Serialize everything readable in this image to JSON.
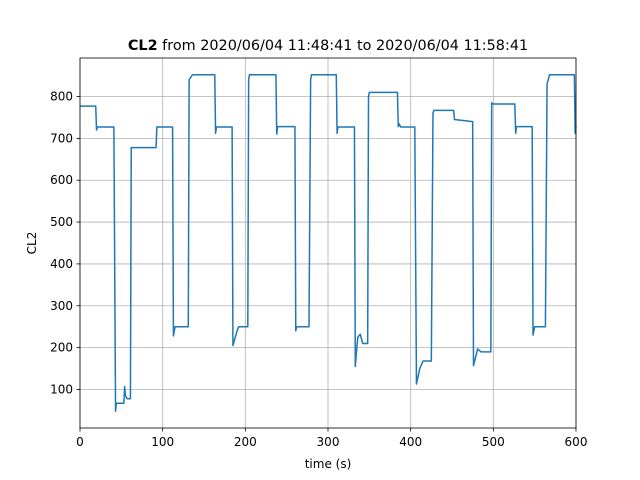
{
  "chart_data": {
    "type": "line",
    "title": [
      "CL2",
      "from 2020/06/04 11:48:41 to 2020/06/04 11:58:41"
    ],
    "x_label": "time (s)",
    "y_label": "CL2",
    "x": [
      0,
      19,
      20,
      21,
      41,
      43,
      44,
      53,
      54,
      55,
      57,
      61,
      62,
      63,
      92,
      93,
      112,
      113,
      115,
      131,
      132,
      136,
      163,
      164,
      165,
      184,
      185,
      190,
      192,
      203,
      204,
      205,
      237,
      238,
      239,
      260,
      261,
      262,
      277,
      279,
      280,
      310,
      311,
      312,
      332,
      333,
      336,
      339,
      342,
      348,
      349,
      350,
      384,
      385,
      386,
      388,
      405,
      407,
      411,
      415,
      425,
      427,
      428,
      452,
      453,
      475,
      476,
      481,
      485,
      497,
      498,
      499,
      526,
      527,
      528,
      547,
      548,
      550,
      563,
      565,
      568,
      598,
      599,
      600
    ],
    "series": [
      {
        "name": "CL2",
        "color": "#1f77b4",
        "values": [
          777,
          777,
          720,
          727,
          727,
          48,
          67,
          67,
          107,
          85,
          78,
          78,
          678,
          678,
          678,
          727,
          727,
          228,
          250,
          250,
          840,
          852,
          852,
          712,
          727,
          727,
          205,
          240,
          250,
          250,
          840,
          852,
          852,
          710,
          728,
          728,
          240,
          250,
          250,
          840,
          852,
          852,
          712,
          727,
          727,
          155,
          225,
          232,
          210,
          210,
          800,
          810,
          810,
          728,
          735,
          727,
          727,
          113,
          150,
          168,
          168,
          760,
          767,
          767,
          745,
          740,
          157,
          197,
          190,
          190,
          785,
          782,
          782,
          712,
          728,
          728,
          230,
          250,
          250,
          830,
          852,
          852,
          712,
          730
        ]
      }
    ],
    "xlim": [
      0,
      600
    ],
    "ylim": [
      8,
      892
    ],
    "xticks": [
      0,
      100,
      200,
      300,
      400,
      500,
      600
    ],
    "yticks": [
      100,
      200,
      300,
      400,
      500,
      600,
      700,
      800
    ],
    "grid": true
  }
}
